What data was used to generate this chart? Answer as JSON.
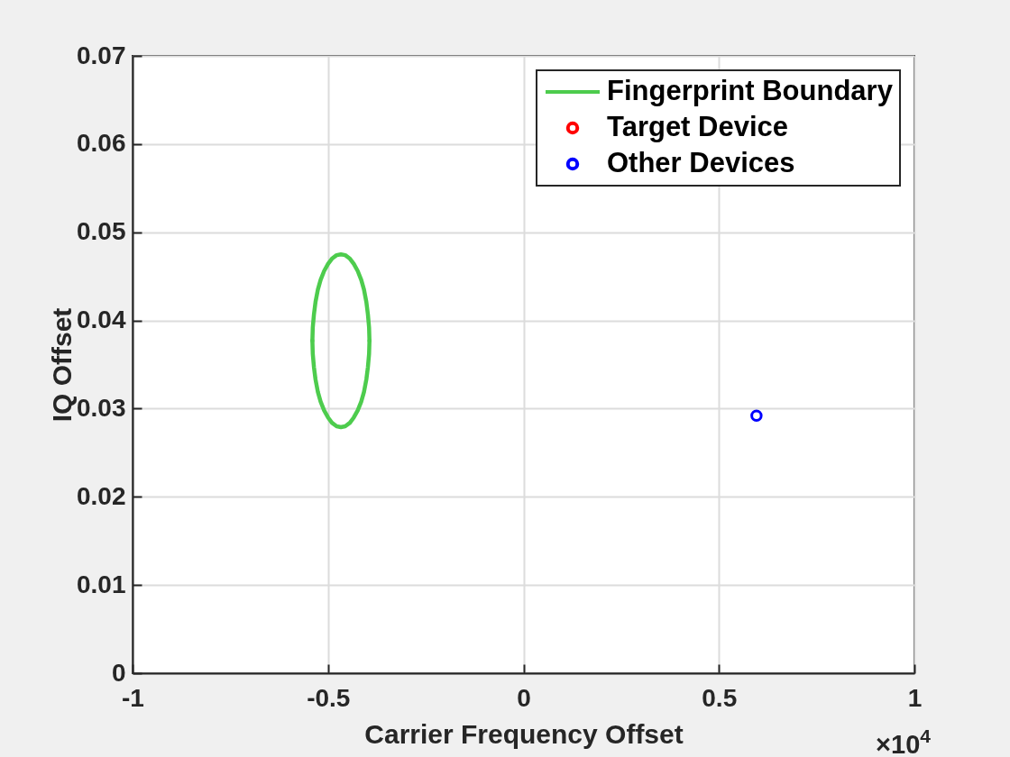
{
  "chart_data": {
    "type": "scatter",
    "xlabel": "Carrier Frequency Offset",
    "ylabel": "IQ Offset",
    "annotations": [
      "×10$^{4}$"
    ],
    "xlim": [
      -1,
      1
    ],
    "xticks": [
      -1,
      -0.5,
      0,
      0.5,
      1
    ],
    "ylim": [
      0,
      0.07
    ],
    "yticks": [
      0,
      0.01,
      0.02,
      0.03,
      0.04,
      0.05,
      0.06,
      0.07
    ],
    "grid": true,
    "legend": "top right",
    "series": [
      {
        "name": "Fingerprint Boundary",
        "type": "line",
        "color": "#4dcc4d",
        "x": [
          -0.394,
          -0.395,
          -0.398,
          -0.402,
          -0.408,
          -0.415,
          -0.424,
          -0.434,
          -0.444,
          -0.456,
          -0.467,
          -0.478,
          -0.49,
          -0.5,
          -0.51,
          -0.519,
          -0.526,
          -0.532,
          -0.536,
          -0.539,
          -0.54
        ],
        "values": [
          0.0377,
          0.0392,
          0.0407,
          0.0421,
          0.0435,
          0.0446,
          0.0456,
          0.0464,
          0.047,
          0.0474,
          0.0475,
          0.0474,
          0.047,
          0.0464,
          0.0456,
          0.0446,
          0.0435,
          0.0421,
          0.0407,
          0.0392,
          0.0377
        ]
      },
      {
        "type": "line",
        "color": "#4dcc4d",
        "x": [
          -0.54,
          -0.539,
          -0.536,
          -0.532,
          -0.526,
          -0.519,
          -0.51,
          -0.5,
          -0.49,
          -0.478,
          -0.467,
          -0.456,
          -0.444,
          -0.434,
          -0.424,
          -0.415,
          -0.408,
          -0.402,
          -0.398,
          -0.395,
          -0.394
        ],
        "values": [
          0.0377,
          0.0362,
          0.0347,
          0.0333,
          0.0319,
          0.0308,
          0.0298,
          0.029,
          0.0284,
          0.028,
          0.0279,
          0.028,
          0.0284,
          0.029,
          0.0298,
          0.0308,
          0.0319,
          0.0333,
          0.0347,
          0.0362,
          0.0377
        ]
      },
      {
        "name": "Target Device",
        "color": "#ff0000",
        "marker": "circle"
      },
      {
        "name": "Other Devices",
        "color": "#0000ff",
        "marker": "circle",
        "x": [
          0.596
        ],
        "values": [
          0.0292
        ]
      }
    ]
  }
}
